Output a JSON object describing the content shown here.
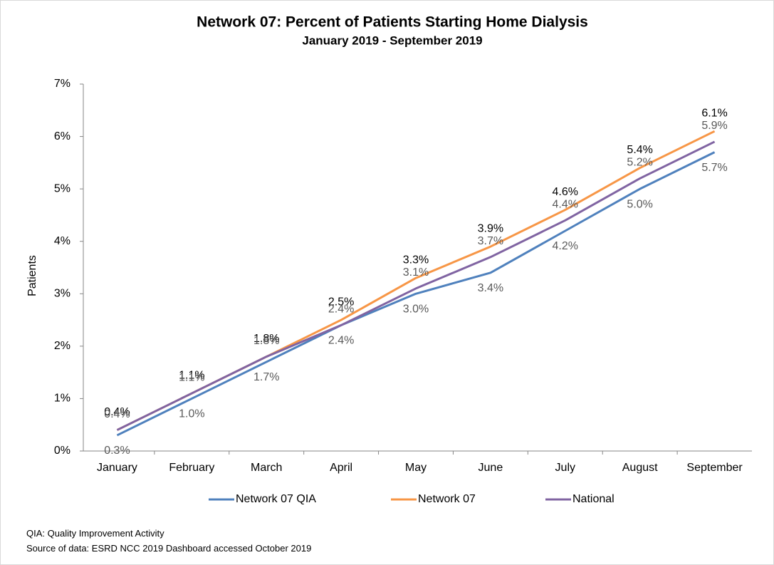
{
  "chart_data": {
    "type": "line",
    "title": "Network 07: Percent of Patients Starting Home Dialysis",
    "subtitle": "January 2019 - September 2019",
    "y_label": "Patients",
    "categories": [
      "January",
      "February",
      "March",
      "April",
      "May",
      "June",
      "July",
      "August",
      "September"
    ],
    "series": [
      {
        "name": "Network 07 QIA",
        "color": "#4f81bd",
        "label_color": "#595959",
        "values": [
          0.3,
          1.0,
          1.7,
          2.4,
          3.0,
          3.4,
          4.2,
          5.0,
          5.7
        ],
        "value_labels": [
          "0.3%",
          "1.0%",
          "1.7%",
          "2.4%",
          "3.0%",
          "3.4%",
          "4.2%",
          "5.0%",
          "5.7%"
        ]
      },
      {
        "name": "Network 07",
        "color": "#f79646",
        "label_color": "#000000",
        "values": [
          0.4,
          1.1,
          1.8,
          2.5,
          3.3,
          3.9,
          4.6,
          5.4,
          6.1
        ],
        "value_labels": [
          "0.4%",
          "1.1%",
          "1.8%",
          "2.5%",
          "3.3%",
          "3.9%",
          "4.6%",
          "5.4%",
          "6.1%"
        ]
      },
      {
        "name": "National",
        "color": "#8064a2",
        "label_color": "#595959",
        "values": [
          0.4,
          1.1,
          1.8,
          2.4,
          3.1,
          3.7,
          4.4,
          5.2,
          5.9
        ],
        "value_labels": [
          "0.4%",
          "1.1%",
          "1.8%",
          "2.4%",
          "3.1%",
          "3.7%",
          "4.4%",
          "5.2%",
          "5.9%"
        ]
      }
    ],
    "ylim": [
      0,
      7
    ],
    "yticks": [
      {
        "value": 0,
        "label": "0%"
      },
      {
        "value": 1,
        "label": "1%"
      },
      {
        "value": 2,
        "label": "2%"
      },
      {
        "value": 3,
        "label": "3%"
      },
      {
        "value": 4,
        "label": "4%"
      },
      {
        "value": 5,
        "label": "5%"
      },
      {
        "value": 6,
        "label": "6%"
      },
      {
        "value": 7,
        "label": "7%"
      }
    ],
    "legend": "bottom",
    "notes": [
      "QIA:  Quality Improvement Activity",
      "Source of data:  ESRD NCC 2019 Dashboard accessed October 2019"
    ]
  }
}
